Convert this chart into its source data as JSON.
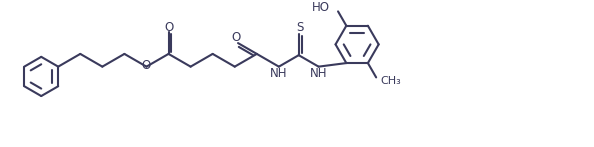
{
  "bg": "#ffffff",
  "lc": "#3a3a5c",
  "lw": 1.5,
  "fs": 8.5,
  "figsize": [
    5.94,
    1.47
  ],
  "dpi": 100,
  "xlim": [
    0,
    594
  ],
  "ylim": [
    0,
    147
  ],
  "BL": 26,
  "R1": 20,
  "R2": 22
}
